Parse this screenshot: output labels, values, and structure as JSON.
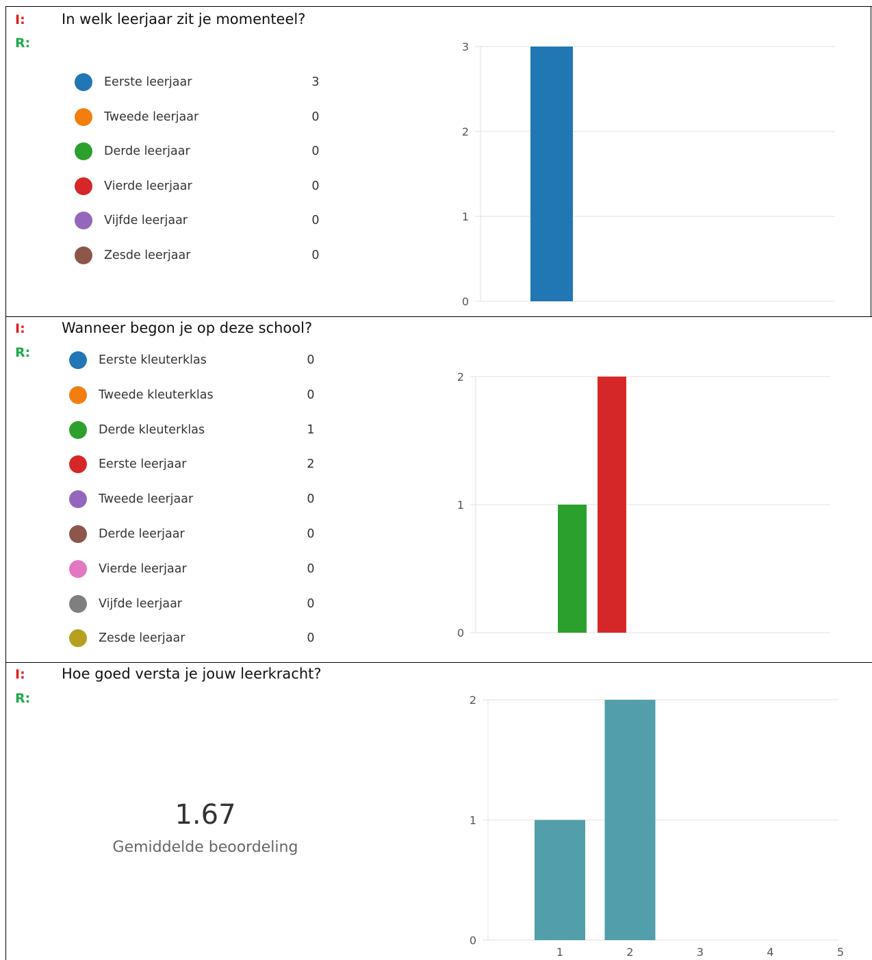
{
  "sections": [
    {
      "i_tag": "I:",
      "r_tag": "R:",
      "question": "In welk leerjaar zit je momenteel?",
      "options": [
        {
          "label": "Eerste leerjaar",
          "count": "3",
          "color": "#2077b4"
        },
        {
          "label": "Tweede leerjaar",
          "count": "0",
          "color": "#f27e10"
        },
        {
          "label": "Derde leerjaar",
          "count": "0",
          "color": "#2ca02c"
        },
        {
          "label": "Vierde leerjaar",
          "count": "0",
          "color": "#d62728"
        },
        {
          "label": "Vijfde leerjaar",
          "count": "0",
          "color": "#9467bd"
        },
        {
          "label": "Zesde leerjaar",
          "count": "0",
          "color": "#8c564b"
        }
      ]
    },
    {
      "i_tag": "I:",
      "r_tag": "R:",
      "question": "Wanneer begon je op deze school?",
      "options": [
        {
          "label": "Eerste kleuterklas",
          "count": "0",
          "color": "#2077b4"
        },
        {
          "label": "Tweede kleuterklas",
          "count": "0",
          "color": "#f27e10"
        },
        {
          "label": "Derde kleuterklas",
          "count": "1",
          "color": "#2ca02c"
        },
        {
          "label": "Eerste leerjaar",
          "count": "2",
          "color": "#d62728"
        },
        {
          "label": "Tweede leerjaar",
          "count": "0",
          "color": "#9467bd"
        },
        {
          "label": "Derde leerjaar",
          "count": "0",
          "color": "#8c564b"
        },
        {
          "label": "Vierde leerjaar",
          "count": "0",
          "color": "#e377c2"
        },
        {
          "label": "Vijfde leerjaar",
          "count": "0",
          "color": "#7f7f7f"
        },
        {
          "label": "Zesde leerjaar",
          "count": "0",
          "color": "#b5a020"
        }
      ]
    },
    {
      "i_tag": "I:",
      "r_tag": "R:",
      "question": "Hoe goed versta je jouw leerkracht?",
      "average_value": "1.67",
      "average_label": "Gemiddelde beoordeling"
    }
  ],
  "chart_data": [
    {
      "type": "bar",
      "categories": [
        "Eerste leerjaar",
        "Tweede leerjaar",
        "Derde leerjaar",
        "Vierde leerjaar",
        "Vijfde leerjaar",
        "Zesde leerjaar"
      ],
      "values": [
        3,
        0,
        0,
        0,
        0,
        0
      ],
      "colors": [
        "#2077b4",
        "#f27e10",
        "#2ca02c",
        "#d62728",
        "#9467bd",
        "#8c564b"
      ],
      "ylim": [
        0,
        3
      ],
      "yticks": [
        "0",
        "1",
        "2",
        "3"
      ],
      "grid": true,
      "show_xticks": false
    },
    {
      "type": "bar",
      "categories": [
        "Eerste kleuterklas",
        "Tweede kleuterklas",
        "Derde kleuterklas",
        "Eerste leerjaar",
        "Tweede leerjaar",
        "Derde leerjaar",
        "Vierde leerjaar",
        "Vijfde leerjaar",
        "Zesde leerjaar"
      ],
      "values": [
        0,
        0,
        1,
        2,
        0,
        0,
        0,
        0,
        0
      ],
      "colors": [
        "#2077b4",
        "#f27e10",
        "#2ca02c",
        "#d62728",
        "#9467bd",
        "#8c564b",
        "#e377c2",
        "#7f7f7f",
        "#b5a020"
      ],
      "ylim": [
        0,
        2
      ],
      "yticks": [
        "0",
        "1",
        "2"
      ],
      "grid": true,
      "show_xticks": false
    },
    {
      "type": "bar",
      "categories": [
        "1",
        "2",
        "3",
        "4",
        "5"
      ],
      "values": [
        1,
        2,
        0,
        0,
        0
      ],
      "colors": [
        "#529fab",
        "#529fab",
        "#529fab",
        "#529fab",
        "#529fab"
      ],
      "ylim": [
        0,
        2
      ],
      "yticks": [
        "0",
        "1",
        "2"
      ],
      "grid": true,
      "show_xticks": true
    }
  ]
}
